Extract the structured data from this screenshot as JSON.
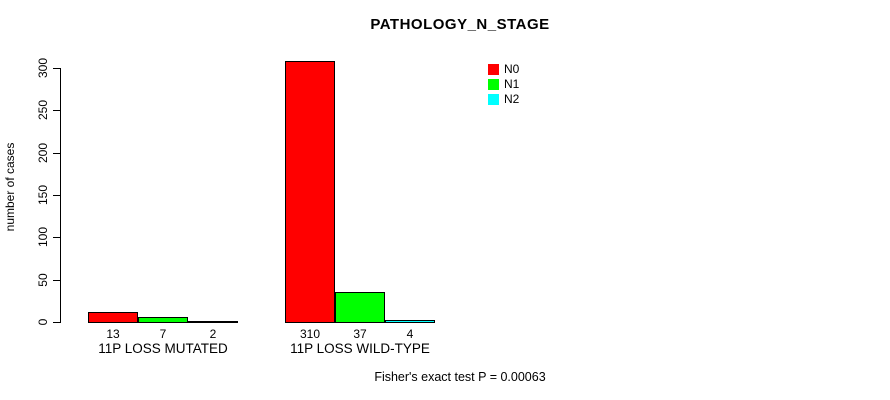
{
  "title": "PATHOLOGY_N_STAGE",
  "footer": "Fisher's exact test P = 0.00063",
  "colors": {
    "background": "#ffffff",
    "axis": "#000000",
    "text": "#000000"
  },
  "legend": {
    "position": "top-right",
    "items": [
      {
        "label": "N0",
        "color": "#ff0000"
      },
      {
        "label": "N1",
        "color": "#00ff00"
      },
      {
        "label": "N2",
        "color": "#00ffff"
      }
    ]
  },
  "chart_data": {
    "type": "bar",
    "title": "PATHOLOGY_N_STAGE",
    "xlabel": "",
    "ylabel": "number of cases",
    "categories": [
      "11P LOSS MUTATED",
      "11P LOSS WILD-TYPE"
    ],
    "series": [
      {
        "name": "N0",
        "color": "#ff0000",
        "values": [
          13,
          310
        ]
      },
      {
        "name": "N1",
        "color": "#00ff00",
        "values": [
          7,
          37
        ]
      },
      {
        "name": "N2",
        "color": "#00ffff",
        "values": [
          2,
          4
        ]
      }
    ],
    "bar_value_labels": [
      [
        13,
        7,
        2
      ],
      [
        310,
        37,
        4
      ]
    ],
    "ylim": [
      0,
      300
    ],
    "yticks": [
      0,
      50,
      100,
      150,
      200,
      250,
      300
    ],
    "grid": false,
    "legend_position": "top-right",
    "annotation": "Fisher's exact test P = 0.00063"
  }
}
